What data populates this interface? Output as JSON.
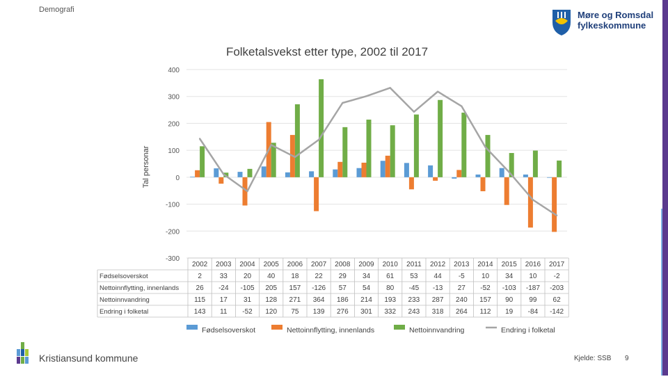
{
  "header": {
    "section_label": "Demografi"
  },
  "logo": {
    "line1": "Møre og Romsdal",
    "line2": "fylkeskommune",
    "icon": "coat-of-arms-icon"
  },
  "footer": {
    "municipality": "Kristiansund kommune",
    "source": "Kjelde: SSB",
    "page_number": "9",
    "icon": "kommune-logo-icon"
  },
  "colors": {
    "births": "#5b9bd5",
    "migration": "#ed7d31",
    "immigration": "#70ad47",
    "change": "#a5a5a5",
    "accent_bar": "#5b3a8e"
  },
  "chart_data": {
    "type": "bar",
    "title": "Folketalsvekst etter type, 2002 til 2017",
    "ylabel": "Tal personar",
    "ylim": [
      -300,
      400
    ],
    "yticks": [
      400,
      300,
      200,
      100,
      0,
      -100,
      -200,
      -300
    ],
    "categories": [
      "2002",
      "2003",
      "2004",
      "2005",
      "2006",
      "2007",
      "2008",
      "2009",
      "2010",
      "2011",
      "2012",
      "2013",
      "2014",
      "2015",
      "2016",
      "2017"
    ],
    "series": [
      {
        "name": "Fødselsoverskot",
        "kind": "bar",
        "values": [
          2,
          33,
          20,
          40,
          18,
          22,
          29,
          34,
          61,
          53,
          44,
          -5,
          10,
          34,
          10,
          -2
        ]
      },
      {
        "name": "Nettoinnflytting, innenlands",
        "kind": "bar",
        "values": [
          26,
          -24,
          -105,
          205,
          157,
          -126,
          57,
          54,
          80,
          -45,
          -13,
          27,
          -52,
          -103,
          -187,
          -203
        ]
      },
      {
        "name": "Nettoinnvandring",
        "kind": "bar",
        "values": [
          115,
          17,
          31,
          128,
          271,
          364,
          186,
          214,
          193,
          233,
          287,
          240,
          157,
          90,
          99,
          62
        ]
      },
      {
        "name": "Endring i folketal",
        "kind": "line",
        "values": [
          143,
          11,
          -52,
          120,
          75,
          139,
          276,
          301,
          332,
          243,
          318,
          264,
          112,
          19,
          -84,
          -142
        ]
      }
    ],
    "legend_position": "bottom"
  }
}
